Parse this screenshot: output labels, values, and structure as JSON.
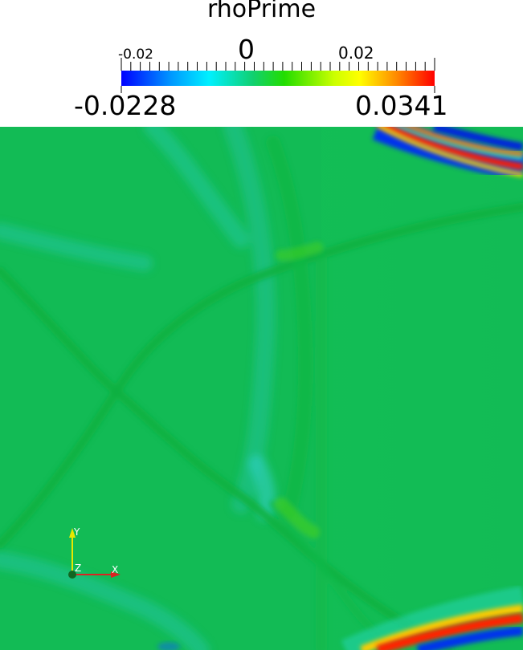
{
  "legend": {
    "title": "rhoPrime",
    "tick_labels": [
      "-0.02",
      "0",
      "0.02"
    ],
    "range_min": "-0.0228",
    "range_max": "0.0341"
  },
  "axes": {
    "x_label": "X",
    "y_label": "Y",
    "z_label": "Z"
  },
  "colors": {
    "background_field": "#11bb55",
    "colormap": [
      "#0000ff",
      "#00ccff",
      "#00e0c0",
      "#11c466",
      "#33ee00",
      "#ccff00",
      "#ffff00",
      "#ff8800",
      "#ff0000"
    ]
  }
}
